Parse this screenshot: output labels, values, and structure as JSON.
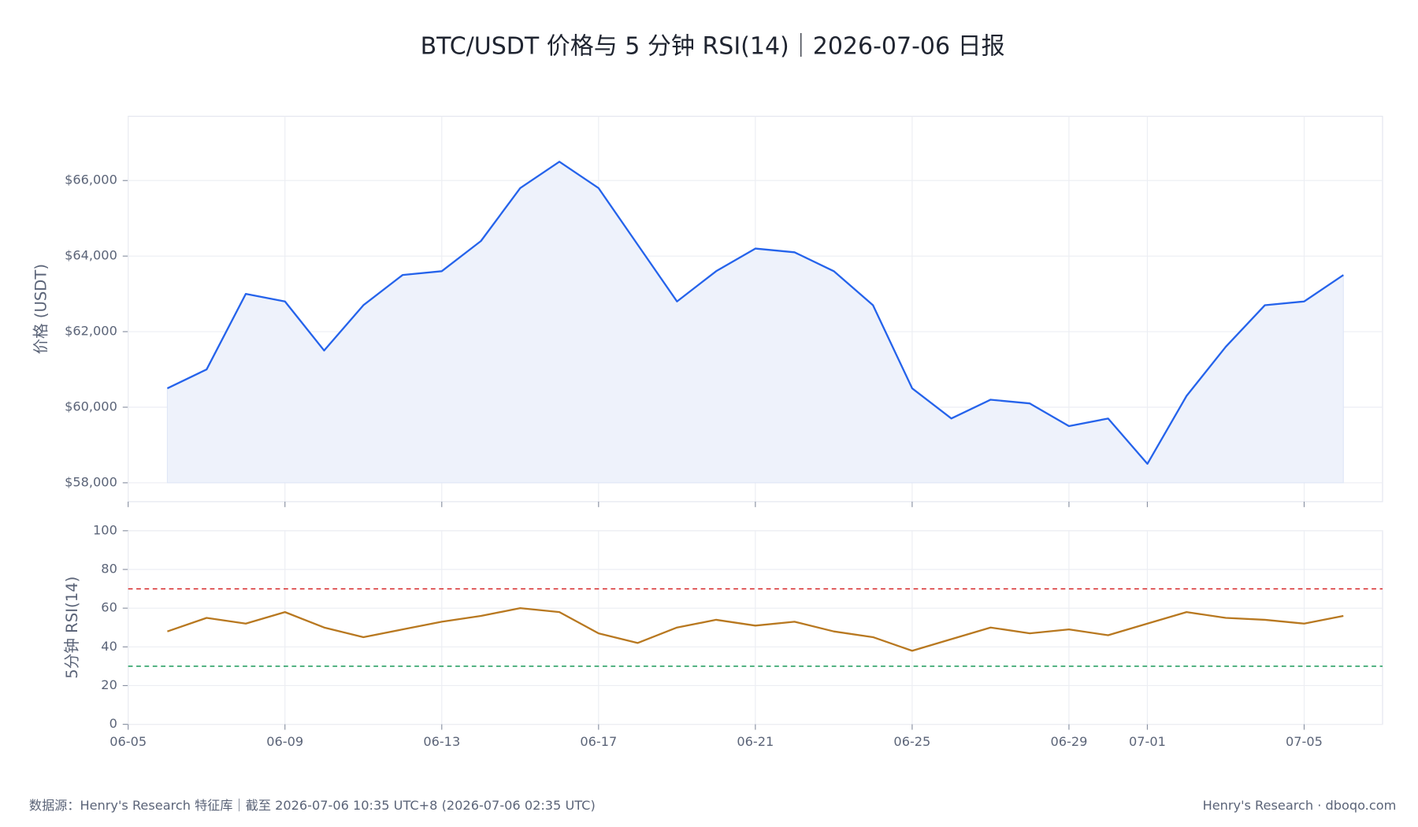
{
  "chart_data": [
    {
      "type": "line",
      "title": "BTC/USDT 价格与 5 分钟 RSI(14)｜2026-07-06 日报",
      "y_label": "价格 (USDT)",
      "x": [
        "06-06",
        "06-07",
        "06-08",
        "06-09",
        "06-10",
        "06-11",
        "06-12",
        "06-13",
        "06-14",
        "06-15",
        "06-16",
        "06-17",
        "06-18",
        "06-19",
        "06-20",
        "06-21",
        "06-22",
        "06-23",
        "06-24",
        "06-25",
        "06-26",
        "06-27",
        "06-28",
        "06-29",
        "06-30",
        "07-01",
        "07-02",
        "07-03",
        "07-04",
        "07-05",
        "07-06"
      ],
      "series": [
        {
          "name": "价格",
          "color": "#2563eb",
          "fill": "#eef2fb",
          "values": [
            60500,
            61000,
            63000,
            62800,
            61500,
            62700,
            63500,
            63600,
            64400,
            65800,
            66500,
            65800,
            64300,
            62800,
            63600,
            64200,
            64100,
            63600,
            62700,
            60500,
            59700,
            60200,
            60100,
            59500,
            59700,
            58500,
            60300,
            61600,
            62700,
            62800,
            63500
          ]
        }
      ],
      "xlim": [
        "06-05",
        "07-07"
      ],
      "xticks": [
        "06-05",
        "06-09",
        "06-13",
        "06-17",
        "06-21",
        "06-25",
        "06-29",
        "07-01",
        "07-05"
      ],
      "ylim": [
        57500,
        67700
      ],
      "yticks": [
        {
          "value": 58000,
          "label": "$58,000"
        },
        {
          "value": 60000,
          "label": "$60,000"
        },
        {
          "value": 62000,
          "label": "$62,000"
        },
        {
          "value": 64000,
          "label": "$64,000"
        },
        {
          "value": 66000,
          "label": "$66,000"
        }
      ],
      "grid": true
    },
    {
      "type": "line",
      "y_label": "5分钟 RSI(14)",
      "x": [
        "06-06",
        "06-07",
        "06-08",
        "06-09",
        "06-10",
        "06-11",
        "06-12",
        "06-13",
        "06-14",
        "06-15",
        "06-16",
        "06-17",
        "06-18",
        "06-19",
        "06-20",
        "06-21",
        "06-22",
        "06-23",
        "06-24",
        "06-25",
        "06-26",
        "06-27",
        "06-28",
        "06-29",
        "06-30",
        "07-01",
        "07-02",
        "07-03",
        "07-04",
        "07-05",
        "07-06"
      ],
      "series": [
        {
          "name": "RSI",
          "color": "#b87820",
          "values": [
            48,
            55,
            52,
            58,
            50,
            45,
            49,
            53,
            56,
            60,
            58,
            47,
            42,
            50,
            54,
            51,
            53,
            48,
            45,
            38,
            44,
            50,
            47,
            49,
            46,
            52,
            58,
            55,
            54,
            52,
            56
          ]
        }
      ],
      "xlim": [
        "06-05",
        "07-07"
      ],
      "xticks": [
        "06-05",
        "06-09",
        "06-13",
        "06-17",
        "06-21",
        "06-25",
        "06-29",
        "07-01",
        "07-05"
      ],
      "ylim": [
        0,
        100
      ],
      "yticks": [
        0,
        20,
        40,
        60,
        80,
        100
      ],
      "thresholds": [
        {
          "value": 70,
          "color": "#d62728"
        },
        {
          "value": 30,
          "color": "#1a9a5a"
        }
      ],
      "grid": true
    }
  ],
  "footer": {
    "source": "数据源：Henry's Research 特征库｜截至 2026-07-06 10:35 UTC+8 (2026-07-06 02:35 UTC)",
    "brand": "Henry's Research · dboqo.com"
  }
}
